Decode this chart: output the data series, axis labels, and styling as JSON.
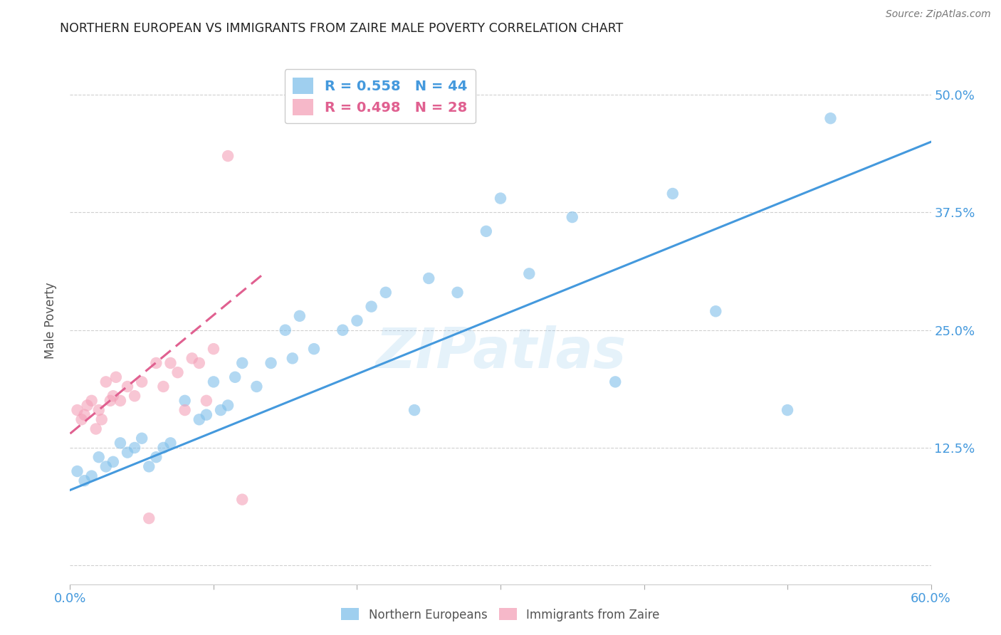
{
  "title": "NORTHERN EUROPEAN VS IMMIGRANTS FROM ZAIRE MALE POVERTY CORRELATION CHART",
  "source": "Source: ZipAtlas.com",
  "ylabel": "Male Poverty",
  "xlim": [
    0.0,
    0.6
  ],
  "ylim": [
    -0.02,
    0.54
  ],
  "yticks": [
    0.0,
    0.125,
    0.25,
    0.375,
    0.5
  ],
  "ytick_labels": [
    "",
    "12.5%",
    "25.0%",
    "37.5%",
    "50.0%"
  ],
  "xticks": [
    0.0,
    0.1,
    0.2,
    0.3,
    0.4,
    0.5,
    0.6
  ],
  "xtick_labels": [
    "0.0%",
    "",
    "",
    "",
    "",
    "",
    "60.0%"
  ],
  "blue_color": "#7fbfea",
  "pink_color": "#f4a0b8",
  "blue_line_color": "#4499dd",
  "pink_line_color": "#e06090",
  "legend_blue_R": "0.558",
  "legend_blue_N": "44",
  "legend_pink_R": "0.498",
  "legend_pink_N": "28",
  "watermark": "ZIPatlas",
  "blue_scatter_x": [
    0.005,
    0.01,
    0.015,
    0.02,
    0.025,
    0.03,
    0.035,
    0.04,
    0.045,
    0.05,
    0.055,
    0.06,
    0.065,
    0.07,
    0.08,
    0.09,
    0.095,
    0.1,
    0.105,
    0.11,
    0.115,
    0.12,
    0.13,
    0.14,
    0.15,
    0.155,
    0.16,
    0.17,
    0.19,
    0.2,
    0.21,
    0.22,
    0.24,
    0.25,
    0.27,
    0.29,
    0.3,
    0.32,
    0.35,
    0.38,
    0.42,
    0.45,
    0.5,
    0.53
  ],
  "blue_scatter_y": [
    0.1,
    0.09,
    0.095,
    0.115,
    0.105,
    0.11,
    0.13,
    0.12,
    0.125,
    0.135,
    0.105,
    0.115,
    0.125,
    0.13,
    0.175,
    0.155,
    0.16,
    0.195,
    0.165,
    0.17,
    0.2,
    0.215,
    0.19,
    0.215,
    0.25,
    0.22,
    0.265,
    0.23,
    0.25,
    0.26,
    0.275,
    0.29,
    0.165,
    0.305,
    0.29,
    0.355,
    0.39,
    0.31,
    0.37,
    0.195,
    0.395,
    0.27,
    0.165,
    0.475
  ],
  "pink_scatter_x": [
    0.005,
    0.008,
    0.01,
    0.012,
    0.015,
    0.018,
    0.02,
    0.022,
    0.025,
    0.028,
    0.03,
    0.032,
    0.035,
    0.04,
    0.045,
    0.05,
    0.055,
    0.06,
    0.065,
    0.07,
    0.075,
    0.08,
    0.085,
    0.09,
    0.095,
    0.1,
    0.11,
    0.12
  ],
  "pink_scatter_y": [
    0.165,
    0.155,
    0.16,
    0.17,
    0.175,
    0.145,
    0.165,
    0.155,
    0.195,
    0.175,
    0.18,
    0.2,
    0.175,
    0.19,
    0.18,
    0.195,
    0.05,
    0.215,
    0.19,
    0.215,
    0.205,
    0.165,
    0.22,
    0.215,
    0.175,
    0.23,
    0.435,
    0.07
  ],
  "blue_regline_x": [
    0.0,
    0.6
  ],
  "blue_regline_y": [
    0.08,
    0.45
  ],
  "pink_regline_x": [
    0.0,
    0.135
  ],
  "pink_regline_y": [
    0.14,
    0.31
  ],
  "background_color": "#ffffff",
  "grid_color": "#d0d0d0"
}
